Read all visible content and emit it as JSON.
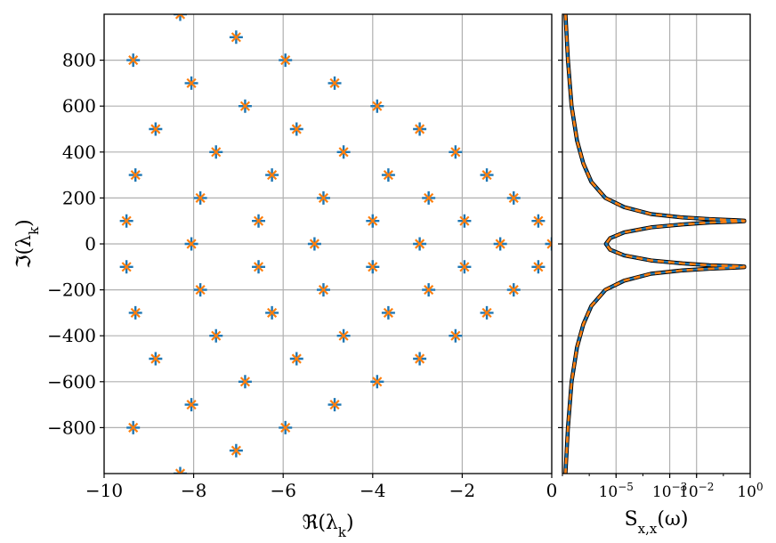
{
  "colors": {
    "blue": "#1f77b4",
    "orange": "#ff7f0e",
    "black": "#000000",
    "grid": "#b0b0b0"
  },
  "chart_data": [
    {
      "type": "scatter",
      "xlabel": "ℜ(λ_k)",
      "ylabel": "ℑ(λ_k)",
      "xlim": [
        -10,
        0
      ],
      "ylim": [
        -1000,
        1000
      ],
      "grid": true,
      "x_ticks": [
        -10,
        -8,
        -6,
        -4,
        -2,
        0
      ],
      "y_ticks": [
        -800,
        -600,
        -400,
        -200,
        0,
        200,
        400,
        600,
        800
      ],
      "x_tick_labels": [
        "−10",
        "−8",
        "−6",
        "−4",
        "−2",
        "0"
      ],
      "y_tick_labels": [
        "−800",
        "−600",
        "−400",
        "−200",
        "0",
        "200",
        "400",
        "600",
        "800"
      ],
      "series": [
        {
          "marker": "+",
          "color": "blue",
          "points": [
            [
              -8.3,
              1000
            ],
            [
              -7.05,
              900
            ],
            [
              -5.95,
              800
            ],
            [
              -4.85,
              700
            ],
            [
              -3.9,
              600
            ],
            [
              -2.95,
              500
            ],
            [
              -2.15,
              400
            ],
            [
              -1.45,
              300
            ],
            [
              -0.85,
              200
            ],
            [
              -0.3,
              100
            ],
            [
              0,
              0
            ],
            [
              -0.3,
              -100
            ],
            [
              -0.85,
              -200
            ],
            [
              -1.45,
              -300
            ],
            [
              -2.15,
              -400
            ],
            [
              -2.95,
              -500
            ],
            [
              -3.9,
              -600
            ],
            [
              -4.85,
              -700
            ],
            [
              -5.95,
              -800
            ],
            [
              -7.05,
              -900
            ],
            [
              -8.3,
              -1000
            ],
            [
              -9.35,
              800
            ],
            [
              -8.05,
              700
            ],
            [
              -6.85,
              600
            ],
            [
              -5.7,
              500
            ],
            [
              -4.65,
              400
            ],
            [
              -3.65,
              300
            ],
            [
              -2.75,
              200
            ],
            [
              -1.95,
              100
            ],
            [
              -1.15,
              0
            ],
            [
              -1.95,
              -100
            ],
            [
              -2.75,
              -200
            ],
            [
              -3.65,
              -300
            ],
            [
              -4.65,
              -400
            ],
            [
              -5.7,
              -500
            ],
            [
              -6.85,
              -600
            ],
            [
              -8.05,
              -700
            ],
            [
              -9.35,
              -800
            ],
            [
              -8.85,
              500
            ],
            [
              -7.5,
              400
            ],
            [
              -6.25,
              300
            ],
            [
              -5.1,
              200
            ],
            [
              -4.0,
              100
            ],
            [
              -2.95,
              0
            ],
            [
              -4.0,
              -100
            ],
            [
              -5.1,
              -200
            ],
            [
              -6.25,
              -300
            ],
            [
              -7.5,
              -400
            ],
            [
              -8.85,
              -500
            ],
            [
              -9.3,
              300
            ],
            [
              -7.85,
              200
            ],
            [
              -6.55,
              100
            ],
            [
              -5.3,
              0
            ],
            [
              -6.55,
              -100
            ],
            [
              -7.85,
              -200
            ],
            [
              -9.3,
              -300
            ],
            [
              -9.5,
              100
            ],
            [
              -8.05,
              0
            ],
            [
              -9.5,
              -100
            ]
          ]
        },
        {
          "marker": "x",
          "color": "orange",
          "points": [
            [
              -8.3,
              1000
            ],
            [
              -7.05,
              900
            ],
            [
              -5.95,
              800
            ],
            [
              -4.85,
              700
            ],
            [
              -3.9,
              600
            ],
            [
              -2.95,
              500
            ],
            [
              -2.15,
              400
            ],
            [
              -1.45,
              300
            ],
            [
              -0.85,
              200
            ],
            [
              -0.3,
              100
            ],
            [
              0,
              0
            ],
            [
              -0.3,
              -100
            ],
            [
              -0.85,
              -200
            ],
            [
              -1.45,
              -300
            ],
            [
              -2.15,
              -400
            ],
            [
              -2.95,
              -500
            ],
            [
              -3.9,
              -600
            ],
            [
              -4.85,
              -700
            ],
            [
              -5.95,
              -800
            ],
            [
              -7.05,
              -900
            ],
            [
              -8.3,
              -1000
            ],
            [
              -9.35,
              800
            ],
            [
              -8.05,
              700
            ],
            [
              -6.85,
              600
            ],
            [
              -5.7,
              500
            ],
            [
              -4.65,
              400
            ],
            [
              -3.65,
              300
            ],
            [
              -2.75,
              200
            ],
            [
              -1.95,
              100
            ],
            [
              -1.15,
              0
            ],
            [
              -1.95,
              -100
            ],
            [
              -2.75,
              -200
            ],
            [
              -3.65,
              -300
            ],
            [
              -4.65,
              -400
            ],
            [
              -5.7,
              -500
            ],
            [
              -6.85,
              -600
            ],
            [
              -8.05,
              -700
            ],
            [
              -9.35,
              -800
            ],
            [
              -8.85,
              500
            ],
            [
              -7.5,
              400
            ],
            [
              -6.25,
              300
            ],
            [
              -5.1,
              200
            ],
            [
              -4.0,
              100
            ],
            [
              -2.95,
              0
            ],
            [
              -4.0,
              -100
            ],
            [
              -5.1,
              -200
            ],
            [
              -6.25,
              -300
            ],
            [
              -7.5,
              -400
            ],
            [
              -8.85,
              -500
            ],
            [
              -9.3,
              300
            ],
            [
              -7.85,
              200
            ],
            [
              -6.55,
              100
            ],
            [
              -5.3,
              0
            ],
            [
              -6.55,
              -100
            ],
            [
              -7.85,
              -200
            ],
            [
              -9.3,
              -300
            ],
            [
              -9.5,
              100
            ],
            [
              -8.05,
              0
            ],
            [
              -9.5,
              -100
            ]
          ]
        }
      ]
    },
    {
      "type": "line",
      "xlabel": "S_{x,x}(ω)",
      "ylabel": "",
      "xscale": "log",
      "xlim": [
        1e-07,
        1
      ],
      "ylim": [
        -1000,
        1000
      ],
      "grid": true,
      "x_ticks": [
        1e-05,
        0.001,
        0.01,
        1
      ],
      "x_tick_labels": [
        {
          "base": "10",
          "exp": "−5"
        },
        {
          "base": "10",
          "exp": "−3"
        },
        {
          "base": "10",
          "exp": "−2"
        },
        {
          "base": "10",
          "exp": "0"
        }
      ],
      "y_ticks": [
        -800,
        -600,
        -400,
        -200,
        0,
        200,
        400,
        600,
        800
      ],
      "series": [
        {
          "color": "black",
          "style": "solid",
          "width": "thick",
          "points": [
            [
              1.3e-07,
              1000
            ],
            [
              1.6e-07,
              800
            ],
            [
              2.2e-07,
              600
            ],
            [
              3.5e-07,
              450
            ],
            [
              6e-07,
              350
            ],
            [
              1.2e-06,
              270
            ],
            [
              4e-06,
              200
            ],
            [
              2e-05,
              160
            ],
            [
              0.0002,
              130
            ],
            [
              0.003,
              115
            ],
            [
              0.03,
              108
            ],
            [
              0.3,
              103
            ],
            [
              0.6,
              101
            ],
            [
              0.6,
              99
            ],
            [
              0.3,
              97
            ],
            [
              0.03,
              93
            ],
            [
              0.003,
              85
            ],
            [
              0.0002,
              72
            ],
            [
              2e-05,
              50
            ],
            [
              6e-06,
              25
            ],
            [
              4.2e-06,
              0
            ],
            [
              6e-06,
              -25
            ],
            [
              2e-05,
              -50
            ],
            [
              0.0002,
              -72
            ],
            [
              0.003,
              -85
            ],
            [
              0.03,
              -93
            ],
            [
              0.3,
              -97
            ],
            [
              0.6,
              -99
            ],
            [
              0.6,
              -101
            ],
            [
              0.3,
              -103
            ],
            [
              0.03,
              -108
            ],
            [
              0.003,
              -115
            ],
            [
              0.0002,
              -130
            ],
            [
              2e-05,
              -160
            ],
            [
              4e-06,
              -200
            ],
            [
              1.2e-06,
              -270
            ],
            [
              6e-07,
              -350
            ],
            [
              3.5e-07,
              -450
            ],
            [
              2.2e-07,
              -600
            ],
            [
              1.6e-07,
              -800
            ],
            [
              1.3e-07,
              -1000
            ]
          ]
        },
        {
          "color": "blue",
          "style": "solid",
          "width": "medium",
          "points": [
            [
              1.3e-07,
              1000
            ],
            [
              1.6e-07,
              800
            ],
            [
              2.2e-07,
              600
            ],
            [
              3.5e-07,
              450
            ],
            [
              6e-07,
              350
            ],
            [
              1.2e-06,
              270
            ],
            [
              4e-06,
              200
            ],
            [
              2e-05,
              160
            ],
            [
              0.0002,
              130
            ],
            [
              0.003,
              115
            ],
            [
              0.03,
              108
            ],
            [
              0.3,
              103
            ],
            [
              0.6,
              101
            ],
            [
              0.6,
              99
            ],
            [
              0.3,
              97
            ],
            [
              0.03,
              93
            ],
            [
              0.003,
              85
            ],
            [
              0.0002,
              72
            ],
            [
              2e-05,
              50
            ],
            [
              6e-06,
              25
            ],
            [
              4.2e-06,
              0
            ],
            [
              6e-06,
              -25
            ],
            [
              2e-05,
              -50
            ],
            [
              0.0002,
              -72
            ],
            [
              0.003,
              -85
            ],
            [
              0.03,
              -93
            ],
            [
              0.3,
              -97
            ],
            [
              0.6,
              -99
            ],
            [
              0.6,
              -101
            ],
            [
              0.3,
              -103
            ],
            [
              0.03,
              -108
            ],
            [
              0.003,
              -115
            ],
            [
              0.0002,
              -130
            ],
            [
              2e-05,
              -160
            ],
            [
              4e-06,
              -200
            ],
            [
              1.2e-06,
              -270
            ],
            [
              6e-07,
              -350
            ],
            [
              3.5e-07,
              -450
            ],
            [
              2.2e-07,
              -600
            ],
            [
              1.6e-07,
              -800
            ],
            [
              1.3e-07,
              -1000
            ]
          ]
        },
        {
          "color": "orange",
          "style": "dashed",
          "width": "medium",
          "points": [
            [
              1.3e-07,
              1000
            ],
            [
              1.6e-07,
              800
            ],
            [
              2.2e-07,
              600
            ],
            [
              3.5e-07,
              450
            ],
            [
              6e-07,
              350
            ],
            [
              1.2e-06,
              270
            ],
            [
              4e-06,
              200
            ],
            [
              2e-05,
              160
            ],
            [
              0.0002,
              130
            ],
            [
              0.003,
              115
            ],
            [
              0.03,
              108
            ],
            [
              0.3,
              103
            ],
            [
              0.6,
              101
            ],
            [
              0.6,
              99
            ],
            [
              0.3,
              97
            ],
            [
              0.03,
              93
            ],
            [
              0.003,
              85
            ],
            [
              0.0002,
              72
            ],
            [
              2e-05,
              50
            ],
            [
              6e-06,
              25
            ],
            [
              4.2e-06,
              0
            ],
            [
              6e-06,
              -25
            ],
            [
              2e-05,
              -50
            ],
            [
              0.0002,
              -72
            ],
            [
              0.003,
              -85
            ],
            [
              0.03,
              -93
            ],
            [
              0.3,
              -97
            ],
            [
              0.6,
              -99
            ],
            [
              0.6,
              -101
            ],
            [
              0.3,
              -103
            ],
            [
              0.03,
              -108
            ],
            [
              0.003,
              -115
            ],
            [
              0.0002,
              -130
            ],
            [
              2e-05,
              -160
            ],
            [
              4e-06,
              -200
            ],
            [
              1.2e-06,
              -270
            ],
            [
              6e-07,
              -350
            ],
            [
              3.5e-07,
              -450
            ],
            [
              2.2e-07,
              -600
            ],
            [
              1.6e-07,
              -800
            ],
            [
              1.3e-07,
              -1000
            ]
          ]
        }
      ]
    }
  ]
}
